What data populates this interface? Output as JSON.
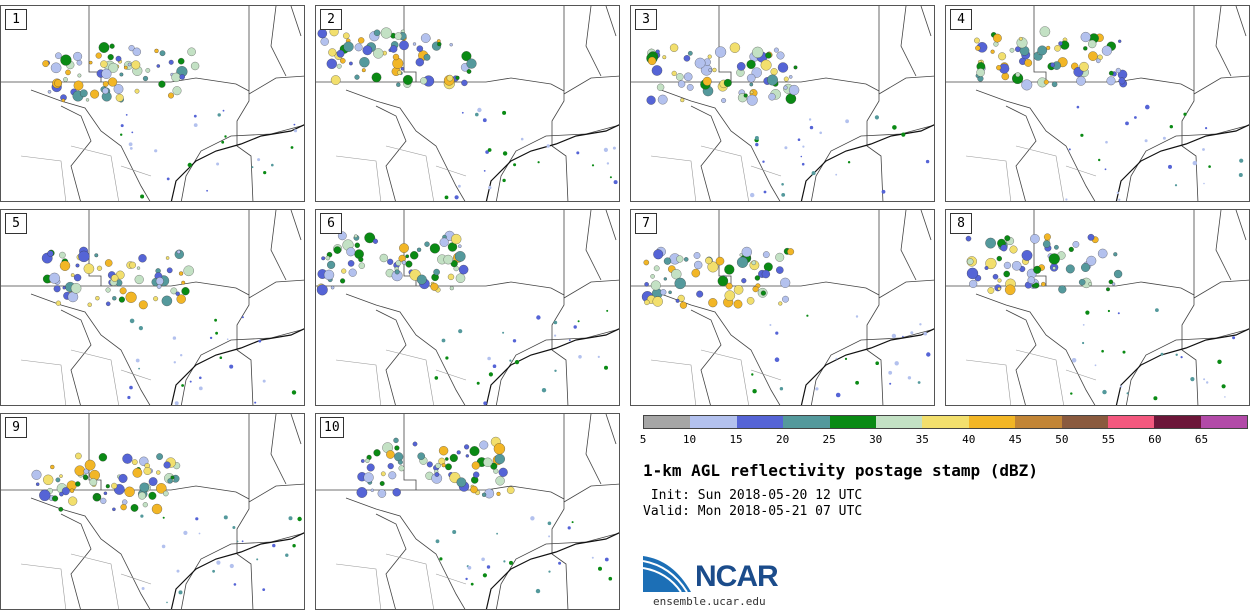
{
  "panels": [
    {
      "label": "1"
    },
    {
      "label": "2"
    },
    {
      "label": "3"
    },
    {
      "label": "4"
    },
    {
      "label": "5"
    },
    {
      "label": "6"
    },
    {
      "label": "7"
    },
    {
      "label": "8"
    },
    {
      "label": "9"
    },
    {
      "label": "10"
    }
  ],
  "legend": {
    "title": "1-km AGL reflectivity postage stamp (dBZ)",
    "init": " Init: Sun 2018-05-20 12 UTC",
    "valid": "Valid: Mon 2018-05-21 07 UTC",
    "tick_labels": [
      "5",
      "10",
      "15",
      "20",
      "25",
      "30",
      "35",
      "40",
      "45",
      "50",
      "55",
      "60",
      "65"
    ],
    "colors": [
      "#a6a6a6",
      "#b3c1ee",
      "#5564d6",
      "#54999c",
      "#0a8a14",
      "#c3e1c4",
      "#f2df6d",
      "#f2b626",
      "#c28536",
      "#8a5a3e",
      "#f3587e",
      "#6c1639",
      "#b24aa8"
    ]
  },
  "branding": {
    "logo_text": "NCAR",
    "site": "ensemble.ucar.edu"
  }
}
